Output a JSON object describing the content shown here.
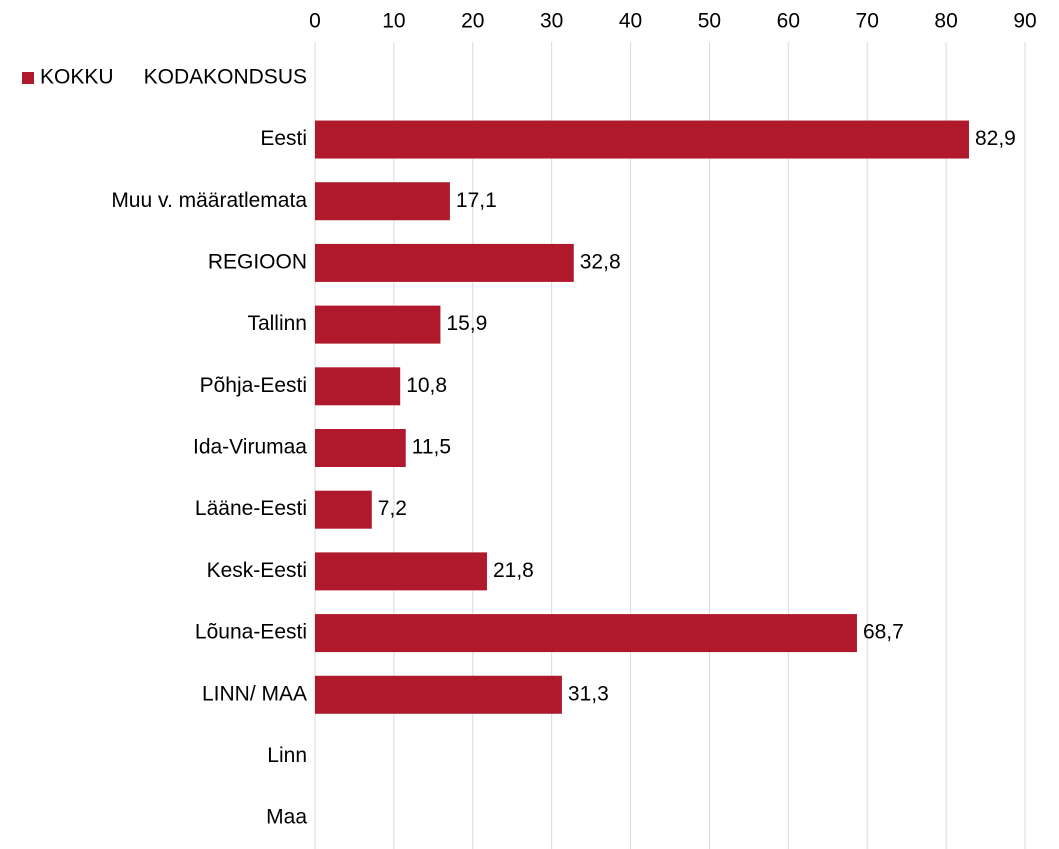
{
  "chart_data": {
    "type": "bar",
    "orientation": "horizontal",
    "categories": [
      "KODAKONDSUS",
      "Eesti",
      "Muu v. määratlemata",
      "REGIOON",
      "Tallinn",
      "Põhja-Eesti",
      "Ida-Virumaa",
      "Lääne-Eesti",
      "Kesk-Eesti",
      "Lõuna-Eesti",
      "LINN/ MAA",
      "Linn",
      "Maa"
    ],
    "series": [
      {
        "name": "KOKKU",
        "color": "#b0192c",
        "values": [
          null,
          82.9,
          17.1,
          32.8,
          15.9,
          10.8,
          11.5,
          7.2,
          21.8,
          68.7,
          31.3,
          null,
          null
        ],
        "value_labels": [
          null,
          "82,9",
          "17,1",
          "32,8",
          "15,9",
          "10,8",
          "11,5",
          "7,2",
          "21,8",
          "68,7",
          "31,3",
          null,
          null
        ]
      }
    ],
    "xlim": [
      0,
      90
    ],
    "xticks": [
      0,
      10,
      20,
      30,
      40,
      50,
      60,
      70,
      80,
      90
    ],
    "grid": true,
    "legend": "top-left"
  }
}
